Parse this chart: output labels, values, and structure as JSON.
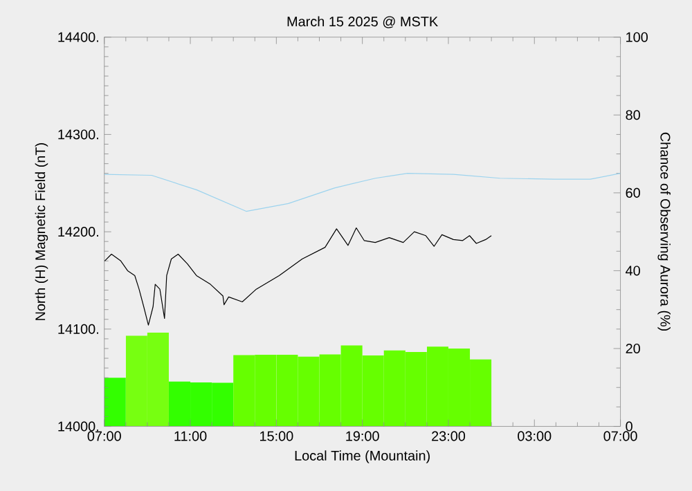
{
  "chart_data": {
    "type": "line",
    "title": "March 15 2025 @ MSTK",
    "xlabel": "Local Time (Mountain)",
    "ylabel": "North (H) Magnetic Field (nT)",
    "y2label": "Chance of Observing Aurora (%)",
    "xlim": [
      "2025-03-15T07:00",
      "2025-03-16T07:00"
    ],
    "xticks": [
      {
        "value": "2025-03-15T07:00",
        "label": "07:00"
      },
      {
        "value": "2025-03-15T11:00",
        "label": "11:00"
      },
      {
        "value": "2025-03-15T15:00",
        "label": "15:00"
      },
      {
        "value": "2025-03-15T19:00",
        "label": "19:00"
      },
      {
        "value": "2025-03-15T23:00",
        "label": "23:00"
      },
      {
        "value": "2025-03-16T03:00",
        "label": "03:00"
      },
      {
        "value": "2025-03-16T07:00",
        "label": "07:00"
      }
    ],
    "ylim": [
      14000,
      14400
    ],
    "yticks": [
      {
        "value": 14000,
        "label": "14000."
      },
      {
        "value": 14100,
        "label": "14100."
      },
      {
        "value": 14200,
        "label": "14200."
      },
      {
        "value": 14300,
        "label": "14300."
      },
      {
        "value": 14400,
        "label": "14400."
      }
    ],
    "y2lim": [
      0,
      100
    ],
    "y2ticks": [
      0,
      20,
      40,
      60,
      80,
      100
    ],
    "series": [
      {
        "type": "bar",
        "axis": "y2",
        "x": [
          "2025-03-15T07:30",
          "2025-03-15T08:30",
          "2025-03-15T09:30",
          "2025-03-15T10:30",
          "2025-03-15T11:30",
          "2025-03-15T12:30",
          "2025-03-15T13:30",
          "2025-03-15T14:30",
          "2025-03-15T15:30",
          "2025-03-15T16:30",
          "2025-03-15T17:30",
          "2025-03-15T18:30",
          "2025-03-15T19:30",
          "2025-03-15T20:30",
          "2025-03-15T21:30",
          "2025-03-15T22:30",
          "2025-03-15T23:30",
          "2025-03-16T00:30"
        ],
        "values": [
          12.5,
          23.3,
          24.1,
          11.5,
          11.3,
          11.2,
          18.3,
          18.4,
          18.4,
          17.9,
          18.5,
          20.8,
          18.2,
          19.5,
          19.1,
          20.5,
          20.0,
          17.2
        ],
        "colors": [
          "#33ff00",
          "#77ff11",
          "#77ff11",
          "#33ff00",
          "#33ff00",
          "#33ff00",
          "#66ff00",
          "#66ff00",
          "#66ff00",
          "#66ff00",
          "#66ff00",
          "#66ff00",
          "#66ff00",
          "#66ff00",
          "#66ff00",
          "#66ff00",
          "#66ff00",
          "#66ff00"
        ]
      },
      {
        "color": "#9cd3ee",
        "x": [
          "2025-03-15T07:00",
          "2025-03-15T09:12",
          "2025-03-15T11:18",
          "2025-03-15T13:36",
          "2025-03-15T15:33",
          "2025-03-15T17:42",
          "2025-03-15T19:36",
          "2025-03-15T21:06",
          "2025-03-15T23:14",
          "2025-03-16T01:24",
          "2025-03-16T03:54",
          "2025-03-16T05:36",
          "2025-03-16T07:00"
        ],
        "values": [
          14259,
          14258,
          14243,
          14221,
          14229,
          14245,
          14255,
          14260,
          14259,
          14255,
          14254,
          14254,
          14260
        ]
      },
      {
        "color": "#000000",
        "x": [
          "2025-03-15T07:01",
          "2025-03-15T07:20",
          "2025-03-15T07:46",
          "2025-03-15T08:05",
          "2025-03-15T08:25",
          "2025-03-15T08:37",
          "2025-03-15T08:50",
          "2025-03-15T09:03",
          "2025-03-15T09:16",
          "2025-03-15T09:22",
          "2025-03-15T09:35",
          "2025-03-15T09:48",
          "2025-03-15T09:54",
          "2025-03-15T10:07",
          "2025-03-15T10:26",
          "2025-03-15T10:52",
          "2025-03-15T11:17",
          "2025-03-15T11:56",
          "2025-03-15T12:31",
          "2025-03-15T12:34",
          "2025-03-15T12:47",
          "2025-03-15T13:25",
          "2025-03-15T14:04",
          "2025-03-15T15:08",
          "2025-03-15T16:12",
          "2025-03-15T17:16",
          "2025-03-15T17:48",
          "2025-03-15T18:20",
          "2025-03-15T18:43",
          "2025-03-15T19:05",
          "2025-03-15T19:36",
          "2025-03-15T20:15",
          "2025-03-15T20:54",
          "2025-03-15T21:25",
          "2025-03-15T21:57",
          "2025-03-15T22:20",
          "2025-03-15T22:42",
          "2025-03-15T23:14",
          "2025-03-15T23:40",
          "2025-03-15T23:59",
          "2025-03-16T00:18",
          "2025-03-16T00:44",
          "2025-03-16T01:00"
        ],
        "values": [
          14170,
          14177,
          14170,
          14160,
          14155,
          14141,
          14123,
          14104,
          14123,
          14146,
          14141,
          14111,
          14155,
          14172,
          14177,
          14167,
          14155,
          14146,
          14134,
          14125,
          14133,
          14128,
          14141,
          14155,
          14172,
          14184,
          14203,
          14186,
          14204,
          14191,
          14189,
          14194,
          14189,
          14200,
          14196,
          14185,
          14197,
          14192,
          14191,
          14196,
          14188,
          14192,
          14196
        ]
      }
    ]
  }
}
